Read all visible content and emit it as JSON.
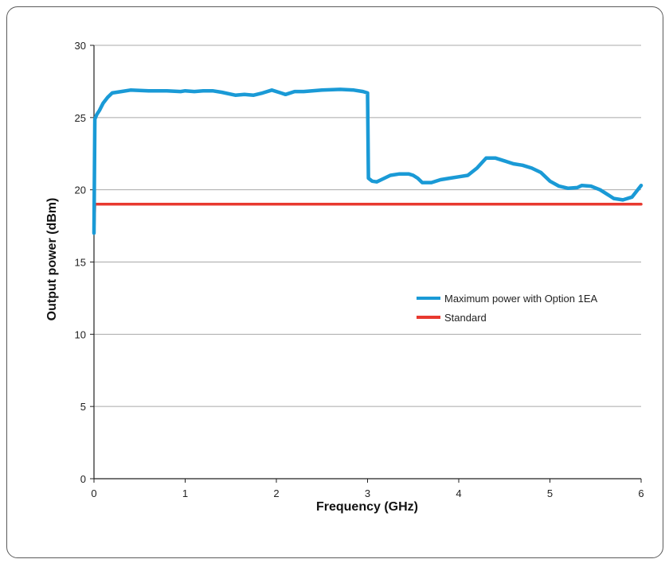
{
  "chart_data": {
    "type": "line",
    "title": "",
    "xlabel": "Frequency (GHz)",
    "ylabel": "Output power (dBm)",
    "xlim": [
      0,
      6
    ],
    "ylim": [
      0,
      30
    ],
    "xticks": [
      "0",
      "1",
      "2",
      "3",
      "4",
      "5",
      "6"
    ],
    "yticks": [
      "0",
      "5",
      "10",
      "15",
      "20",
      "25",
      "30"
    ],
    "grid": "horizontal",
    "legend_position": "right",
    "series": [
      {
        "name": "Maximum power with Option 1EA",
        "color": "#1a9ad6",
        "points": [
          [
            0.0,
            17.0
          ],
          [
            0.01,
            24.9
          ],
          [
            0.03,
            25.2
          ],
          [
            0.06,
            25.5
          ],
          [
            0.1,
            26.0
          ],
          [
            0.15,
            26.4
          ],
          [
            0.2,
            26.7
          ],
          [
            0.3,
            26.8
          ],
          [
            0.4,
            26.9
          ],
          [
            0.6,
            26.85
          ],
          [
            0.8,
            26.85
          ],
          [
            0.95,
            26.8
          ],
          [
            1.0,
            26.85
          ],
          [
            1.1,
            26.8
          ],
          [
            1.2,
            26.85
          ],
          [
            1.3,
            26.85
          ],
          [
            1.4,
            26.75
          ],
          [
            1.55,
            26.55
          ],
          [
            1.65,
            26.6
          ],
          [
            1.75,
            26.55
          ],
          [
            1.85,
            26.7
          ],
          [
            1.95,
            26.9
          ],
          [
            2.05,
            26.7
          ],
          [
            2.1,
            26.6
          ],
          [
            2.2,
            26.8
          ],
          [
            2.3,
            26.8
          ],
          [
            2.5,
            26.9
          ],
          [
            2.7,
            26.95
          ],
          [
            2.85,
            26.9
          ],
          [
            2.95,
            26.8
          ],
          [
            3.0,
            26.7
          ],
          [
            3.01,
            20.8
          ],
          [
            3.05,
            20.6
          ],
          [
            3.1,
            20.55
          ],
          [
            3.15,
            20.7
          ],
          [
            3.25,
            21.0
          ],
          [
            3.35,
            21.1
          ],
          [
            3.45,
            21.1
          ],
          [
            3.5,
            21.0
          ],
          [
            3.55,
            20.8
          ],
          [
            3.6,
            20.5
          ],
          [
            3.7,
            20.5
          ],
          [
            3.8,
            20.7
          ],
          [
            3.9,
            20.8
          ],
          [
            4.0,
            20.9
          ],
          [
            4.1,
            21.0
          ],
          [
            4.2,
            21.5
          ],
          [
            4.3,
            22.2
          ],
          [
            4.4,
            22.2
          ],
          [
            4.5,
            22.0
          ],
          [
            4.6,
            21.8
          ],
          [
            4.7,
            21.7
          ],
          [
            4.8,
            21.5
          ],
          [
            4.9,
            21.2
          ],
          [
            5.0,
            20.6
          ],
          [
            5.1,
            20.25
          ],
          [
            5.2,
            20.1
          ],
          [
            5.3,
            20.15
          ],
          [
            5.35,
            20.3
          ],
          [
            5.45,
            20.25
          ],
          [
            5.55,
            20.0
          ],
          [
            5.65,
            19.6
          ],
          [
            5.7,
            19.4
          ],
          [
            5.8,
            19.3
          ],
          [
            5.9,
            19.5
          ],
          [
            6.0,
            20.3
          ]
        ]
      },
      {
        "name": "Standard",
        "color": "#e8392f",
        "points": [
          [
            0.0,
            17.0
          ],
          [
            0.01,
            19.0
          ],
          [
            6.0,
            19.0
          ]
        ]
      }
    ]
  }
}
